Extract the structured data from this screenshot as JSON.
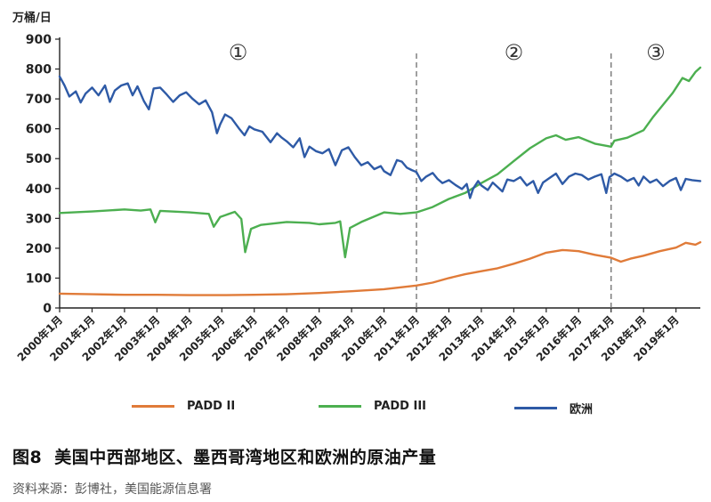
{
  "chart_data": {
    "type": "line",
    "unit_label": "万桶/日",
    "x_range": [
      2000,
      2019.75
    ],
    "ylim": [
      0,
      900
    ],
    "y_ticks": [
      0,
      100,
      200,
      300,
      400,
      500,
      600,
      700,
      800,
      900
    ],
    "x_tick_labels": [
      "2000年1月",
      "2001年1月",
      "2002年1月",
      "2003年1月",
      "2004年1月",
      "2005年1月",
      "2006年1月",
      "2007年1月",
      "2008年1月",
      "2009年1月",
      "2010年1月",
      "2011年1月",
      "2012年1月",
      "2013年1月",
      "2014年1月",
      "2015年1月",
      "2016年1月",
      "2017年1月",
      "2018年1月",
      "2019年1月"
    ],
    "periods": [
      {
        "label": "①",
        "start": 2000,
        "end": 2011
      },
      {
        "label": "②",
        "start": 2011,
        "end": 2017
      },
      {
        "label": "③",
        "start": 2017,
        "end": 2019.75
      }
    ],
    "dividers": [
      2011,
      2017
    ],
    "series": [
      {
        "name": "PADD II",
        "color": "#E07B39",
        "points": [
          [
            2000,
            48
          ],
          [
            2001,
            46
          ],
          [
            2002,
            44
          ],
          [
            2003,
            44
          ],
          [
            2004,
            43
          ],
          [
            2005,
            43
          ],
          [
            2006,
            44
          ],
          [
            2007,
            46
          ],
          [
            2008,
            50
          ],
          [
            2009,
            56
          ],
          [
            2010,
            63
          ],
          [
            2011,
            75
          ],
          [
            2011.5,
            85
          ],
          [
            2012,
            100
          ],
          [
            2012.5,
            113
          ],
          [
            2013,
            123
          ],
          [
            2013.5,
            133
          ],
          [
            2014,
            148
          ],
          [
            2014.5,
            165
          ],
          [
            2015,
            185
          ],
          [
            2015.5,
            194
          ],
          [
            2016,
            190
          ],
          [
            2016.5,
            178
          ],
          [
            2017,
            168
          ],
          [
            2017.3,
            155
          ],
          [
            2017.6,
            165
          ],
          [
            2018,
            175
          ],
          [
            2018.5,
            190
          ],
          [
            2019,
            202
          ],
          [
            2019.3,
            218
          ],
          [
            2019.6,
            212
          ],
          [
            2019.75,
            220
          ]
        ]
      },
      {
        "name": "PADD III",
        "color": "#4CAF50",
        "points": [
          [
            2000,
            318
          ],
          [
            2001,
            323
          ],
          [
            2002,
            330
          ],
          [
            2002.5,
            326
          ],
          [
            2002.8,
            330
          ],
          [
            2002.95,
            287
          ],
          [
            2003.1,
            325
          ],
          [
            2004,
            320
          ],
          [
            2004.6,
            315
          ],
          [
            2004.75,
            272
          ],
          [
            2004.95,
            305
          ],
          [
            2005.4,
            322
          ],
          [
            2005.6,
            298
          ],
          [
            2005.72,
            187
          ],
          [
            2005.9,
            265
          ],
          [
            2006.2,
            278
          ],
          [
            2007,
            288
          ],
          [
            2007.7,
            285
          ],
          [
            2008,
            280
          ],
          [
            2008.5,
            285
          ],
          [
            2008.65,
            290
          ],
          [
            2008.8,
            170
          ],
          [
            2008.95,
            268
          ],
          [
            2009.3,
            288
          ],
          [
            2010,
            320
          ],
          [
            2010.5,
            315
          ],
          [
            2011,
            320
          ],
          [
            2011.5,
            338
          ],
          [
            2012,
            365
          ],
          [
            2012.5,
            385
          ],
          [
            2013,
            418
          ],
          [
            2013.5,
            448
          ],
          [
            2014,
            492
          ],
          [
            2014.5,
            535
          ],
          [
            2015,
            568
          ],
          [
            2015.3,
            578
          ],
          [
            2015.6,
            563
          ],
          [
            2016,
            572
          ],
          [
            2016.5,
            550
          ],
          [
            2017,
            540
          ],
          [
            2017.1,
            560
          ],
          [
            2017.5,
            570
          ],
          [
            2018,
            595
          ],
          [
            2018.3,
            640
          ],
          [
            2018.6,
            680
          ],
          [
            2018.9,
            720
          ],
          [
            2019.2,
            770
          ],
          [
            2019.4,
            760
          ],
          [
            2019.6,
            790
          ],
          [
            2019.75,
            805
          ]
        ]
      },
      {
        "name": "欧洲",
        "color": "#2E5AA6",
        "points": [
          [
            2000,
            775
          ],
          [
            2000.15,
            745
          ],
          [
            2000.3,
            708
          ],
          [
            2000.5,
            725
          ],
          [
            2000.65,
            688
          ],
          [
            2000.8,
            718
          ],
          [
            2001,
            738
          ],
          [
            2001.2,
            712
          ],
          [
            2001.4,
            745
          ],
          [
            2001.55,
            690
          ],
          [
            2001.7,
            728
          ],
          [
            2001.9,
            745
          ],
          [
            2002.1,
            752
          ],
          [
            2002.25,
            712
          ],
          [
            2002.4,
            742
          ],
          [
            2002.6,
            692
          ],
          [
            2002.75,
            665
          ],
          [
            2002.9,
            735
          ],
          [
            2003.1,
            738
          ],
          [
            2003.3,
            715
          ],
          [
            2003.5,
            690
          ],
          [
            2003.7,
            712
          ],
          [
            2003.9,
            722
          ],
          [
            2004.1,
            700
          ],
          [
            2004.3,
            682
          ],
          [
            2004.5,
            695
          ],
          [
            2004.7,
            655
          ],
          [
            2004.85,
            585
          ],
          [
            2004.95,
            615
          ],
          [
            2005.1,
            648
          ],
          [
            2005.3,
            635
          ],
          [
            2005.55,
            598
          ],
          [
            2005.7,
            578
          ],
          [
            2005.85,
            608
          ],
          [
            2006,
            598
          ],
          [
            2006.25,
            590
          ],
          [
            2006.5,
            555
          ],
          [
            2006.7,
            585
          ],
          [
            2006.85,
            570
          ],
          [
            2007,
            558
          ],
          [
            2007.2,
            538
          ],
          [
            2007.4,
            568
          ],
          [
            2007.55,
            505
          ],
          [
            2007.7,
            540
          ],
          [
            2007.9,
            525
          ],
          [
            2008.1,
            518
          ],
          [
            2008.3,
            532
          ],
          [
            2008.5,
            478
          ],
          [
            2008.7,
            528
          ],
          [
            2008.9,
            538
          ],
          [
            2009.1,
            505
          ],
          [
            2009.3,
            478
          ],
          [
            2009.5,
            488
          ],
          [
            2009.7,
            465
          ],
          [
            2009.9,
            475
          ],
          [
            2010,
            458
          ],
          [
            2010.2,
            445
          ],
          [
            2010.4,
            495
          ],
          [
            2010.55,
            490
          ],
          [
            2010.7,
            470
          ],
          [
            2010.85,
            462
          ],
          [
            2011,
            455
          ],
          [
            2011.15,
            425
          ],
          [
            2011.3,
            440
          ],
          [
            2011.5,
            452
          ],
          [
            2011.65,
            432
          ],
          [
            2011.8,
            418
          ],
          [
            2012,
            428
          ],
          [
            2012.2,
            412
          ],
          [
            2012.4,
            398
          ],
          [
            2012.55,
            415
          ],
          [
            2012.65,
            368
          ],
          [
            2012.75,
            400
          ],
          [
            2012.9,
            425
          ],
          [
            2013,
            410
          ],
          [
            2013.2,
            395
          ],
          [
            2013.35,
            420
          ],
          [
            2013.5,
            405
          ],
          [
            2013.65,
            390
          ],
          [
            2013.8,
            430
          ],
          [
            2014,
            425
          ],
          [
            2014.2,
            438
          ],
          [
            2014.4,
            410
          ],
          [
            2014.6,
            425
          ],
          [
            2014.75,
            385
          ],
          [
            2014.9,
            420
          ],
          [
            2015.1,
            435
          ],
          [
            2015.3,
            450
          ],
          [
            2015.5,
            415
          ],
          [
            2015.7,
            440
          ],
          [
            2015.9,
            450
          ],
          [
            2016.1,
            445
          ],
          [
            2016.3,
            430
          ],
          [
            2016.5,
            440
          ],
          [
            2016.7,
            448
          ],
          [
            2016.85,
            385
          ],
          [
            2016.95,
            438
          ],
          [
            2017.1,
            450
          ],
          [
            2017.3,
            440
          ],
          [
            2017.5,
            425
          ],
          [
            2017.7,
            435
          ],
          [
            2017.85,
            410
          ],
          [
            2018,
            440
          ],
          [
            2018.2,
            420
          ],
          [
            2018.4,
            430
          ],
          [
            2018.6,
            408
          ],
          [
            2018.8,
            425
          ],
          [
            2019,
            435
          ],
          [
            2019.15,
            395
          ],
          [
            2019.3,
            432
          ],
          [
            2019.5,
            428
          ],
          [
            2019.75,
            425
          ]
        ]
      }
    ],
    "legend": [
      "PADD II",
      "PADD III",
      "欧洲"
    ]
  },
  "legend": {
    "padd2": "PADD II",
    "padd3": "PADD III",
    "europe": "欧洲"
  },
  "caption": {
    "fig_no": "图8",
    "title": "美国中西部地区、墨西哥湾地区和欧洲的原油产量"
  },
  "source": "资料来源：彭博社，美国能源信息署"
}
